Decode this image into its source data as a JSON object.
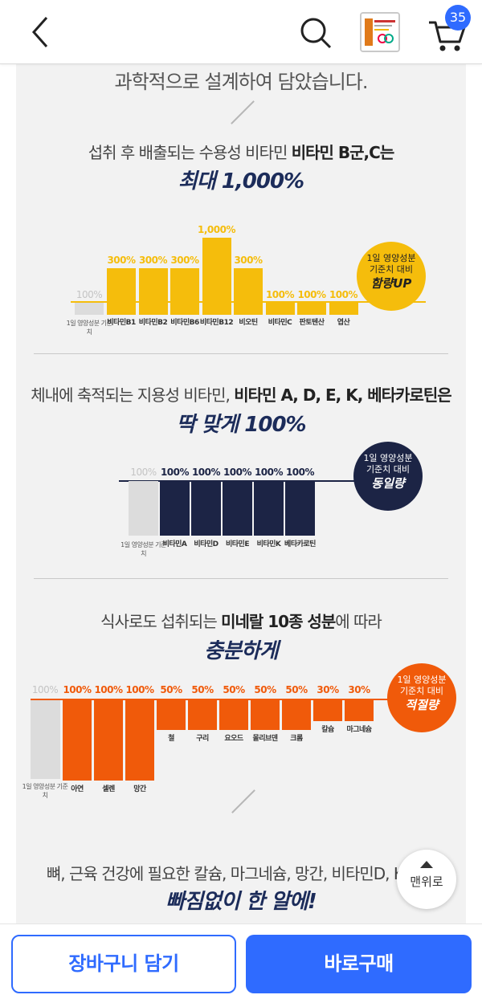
{
  "header": {
    "cart_count": "35"
  },
  "sections": {
    "top_text": "과학적으로 설계하여 담았습니다.",
    "water_soluble": {
      "intro_normal": "섭취 후 배출되는 수용성 비타민 ",
      "intro_bold": "비타민 B군,C는",
      "headline": "최대 1,000%",
      "ref_value": "100%",
      "ref_label": "1일 영양성분 기준치",
      "bars": [
        {
          "label": "비타민B1",
          "value_text": "300%",
          "value": 300
        },
        {
          "label": "비타민B2",
          "value_text": "300%",
          "value": 300
        },
        {
          "label": "비타민B6",
          "value_text": "300%",
          "value": 300
        },
        {
          "label": "비타민B12",
          "value_text": "1,000%",
          "value": 1000
        },
        {
          "label": "비오틴",
          "value_text": "300%",
          "value": 300
        },
        {
          "label": "비타민C",
          "value_text": "100%",
          "value": 100
        },
        {
          "label": "판토텐산",
          "value_text": "100%",
          "value": 100
        },
        {
          "label": "엽산",
          "value_text": "100%",
          "value": 100
        }
      ],
      "badge_line1": "1일 영양성분",
      "badge_line2": "기준치 대비",
      "badge_bold": "함량UP",
      "color": "#f5bd0c"
    },
    "fat_soluble": {
      "intro_normal": "체내에 축적되는 지용성 비타민, ",
      "intro_bold": "비타민 A, D, E, K, 베타카로틴은",
      "headline": "딱 맞게 100%",
      "ref_value": "100%",
      "ref_label": "1일 영양성분 기준치",
      "bars": [
        {
          "label": "비타민A",
          "value_text": "100%",
          "value": 100
        },
        {
          "label": "비타민D",
          "value_text": "100%",
          "value": 100
        },
        {
          "label": "비타민E",
          "value_text": "100%",
          "value": 100
        },
        {
          "label": "비타민K",
          "value_text": "100%",
          "value": 100
        },
        {
          "label": "베타카로틴",
          "value_text": "100%",
          "value": 100
        }
      ],
      "badge_line1": "1일 영양성분",
      "badge_line2": "기준치 대비",
      "badge_bold": "동일량",
      "color": "#1c2445"
    },
    "minerals": {
      "intro_normal1": "식사로도 섭취되는 ",
      "intro_bold": "미네랄 10종 성분",
      "intro_normal2": "에 따라",
      "headline": "충분하게",
      "ref_value": "100%",
      "ref_label": "1일 영양성분 기준치",
      "bars": [
        {
          "label": "아연",
          "value_text": "100%",
          "value": 100
        },
        {
          "label": "셀렌",
          "value_text": "100%",
          "value": 100
        },
        {
          "label": "망간",
          "value_text": "100%",
          "value": 100
        },
        {
          "label": "철",
          "value_text": "50%",
          "value": 50
        },
        {
          "label": "구리",
          "value_text": "50%",
          "value": 50
        },
        {
          "label": "요오드",
          "value_text": "50%",
          "value": 50
        },
        {
          "label": "몰리브덴",
          "value_text": "50%",
          "value": 50
        },
        {
          "label": "크롬",
          "value_text": "50%",
          "value": 50
        },
        {
          "label": "칼슘",
          "value_text": "30%",
          "value": 30
        },
        {
          "label": "마그네슘",
          "value_text": "30%",
          "value": 30
        }
      ],
      "badge_line1": "1일 영양성분",
      "badge_line2": "기준치 대비",
      "badge_bold": "적절량",
      "color": "#f05a0a"
    },
    "bottom_text": "뼈, 근육 건강에 필요한 칼슘, 마그네슘, 망간, 비타민D, K 까지",
    "bottom_headline": "빠짐없이 한 알에!"
  },
  "scroll_top_label": "맨위로",
  "bottom_bar": {
    "add_to_cart": "장바구니 담기",
    "buy_now": "바로구매"
  }
}
